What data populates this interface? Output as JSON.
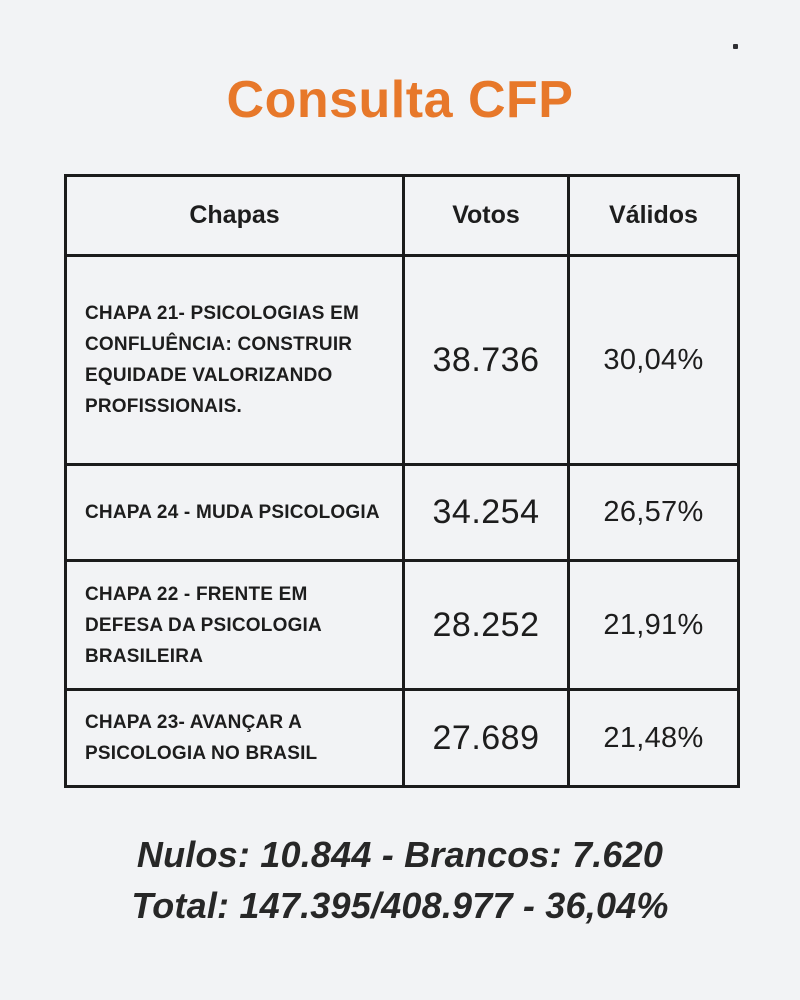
{
  "page": {
    "title": "Consulta CFP",
    "colors": {
      "title_orange": "#E7782A",
      "background": "#F2F3F5",
      "table_border": "#1B1B1B",
      "text_dark": "#1D1D1D"
    }
  },
  "table": {
    "headers": [
      "Chapas",
      "Votos",
      "Válidos"
    ],
    "rows": [
      {
        "chapa": "CHAPA 21- PSICOLOGIAS EM CONFLUÊNCIA: CONSTRUIR EQUIDADE VALORIZANDO PROFISSIONAIS.",
        "votos": "38.736",
        "validos": "30,04%"
      },
      {
        "chapa": "CHAPA 24 - MUDA PSICOLOGIA",
        "votos": "34.254",
        "validos": "26,57%"
      },
      {
        "chapa": "CHAPA 22 - FRENTE EM DEFESA DA PSICOLOGIA BRASILEIRA",
        "votos": "28.252",
        "validos": "21,91%"
      },
      {
        "chapa": "CHAPA 23- AVANÇAR A PSICOLOGIA NO BRASIL",
        "votos": "27.689",
        "validos": "21,48%"
      }
    ]
  },
  "footer": {
    "line1": "Nulos: 10.844 - Brancos: 7.620",
    "line2": "Total: 147.395/408.977 - 36,04%"
  },
  "chart_data": {
    "type": "table",
    "title": "Consulta CFP",
    "columns": [
      "Chapas",
      "Votos",
      "Válidos"
    ],
    "rows": [
      [
        "CHAPA 21- PSICOLOGIAS EM CONFLUÊNCIA: CONSTRUIR EQUIDADE VALORIZANDO PROFISSIONAIS.",
        "38.736",
        "30,04%"
      ],
      [
        "CHAPA 24 - MUDA PSICOLOGIA",
        "34.254",
        "26,57%"
      ],
      [
        "CHAPA 22 - FRENTE EM DEFESA DA PSICOLOGIA BRASILEIRA",
        "28.252",
        "21,91%"
      ],
      [
        "CHAPA 23- AVANÇAR A PSICOLOGIA NO BRASIL",
        "27.689",
        "21,48%"
      ]
    ],
    "votes_numeric": [
      38736,
      34254,
      28252,
      27689
    ],
    "valid_percent_numeric": [
      30.04,
      26.57,
      21.91,
      21.48
    ],
    "nulos": 10844,
    "brancos": 7620,
    "total_votes": 147395,
    "electorate": 408977,
    "turnout_percent": 36.04,
    "notes": [
      "Nulos: 10.844 - Brancos: 7.620",
      "Total: 147.395/408.977 - 36,04%"
    ]
  }
}
